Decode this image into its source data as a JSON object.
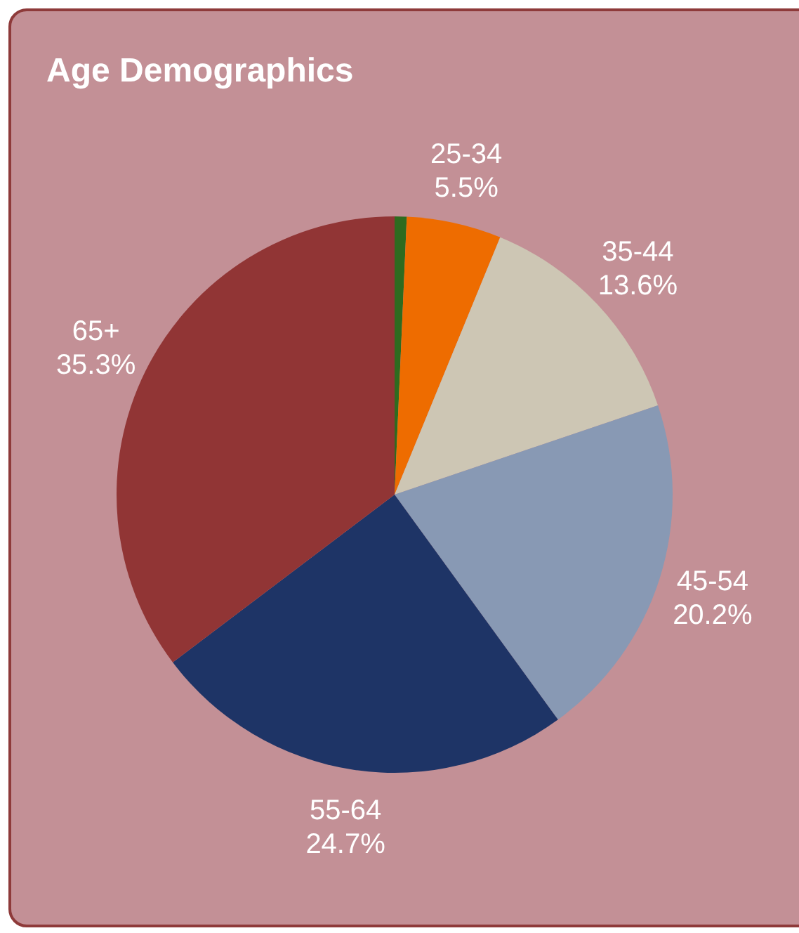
{
  "chart_data": {
    "type": "pie",
    "title": "Age Demographics",
    "categories": [
      null,
      "25-34",
      "35-44",
      "45-54",
      "55-64",
      "65+"
    ],
    "values": [
      0.7,
      5.5,
      13.6,
      20.2,
      24.7,
      35.3
    ],
    "colors": [
      "#2e6b1f",
      "#ee6c00",
      "#cdc6b4",
      "#8899b4",
      "#1e3466",
      "#913535"
    ],
    "value_labels": [
      null,
      "5.5%",
      "13.6%",
      "20.2%",
      "24.7%",
      "35.3%"
    ]
  }
}
